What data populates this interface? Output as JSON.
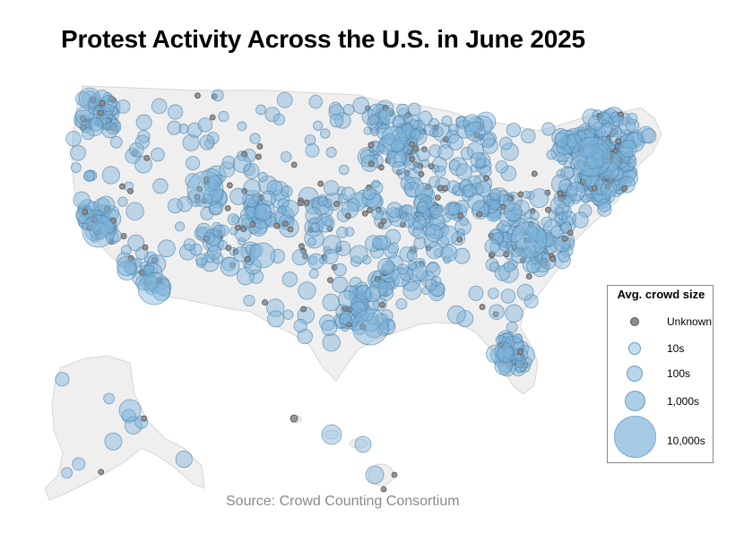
{
  "title": "Protest Activity Across the U.S. in June 2025",
  "source": "Source: Crowd Counting Consortium",
  "legend": {
    "title": "Avg. crowd size",
    "items": [
      {
        "label": "Unknown",
        "kind": "unknown"
      },
      {
        "label": "10s",
        "kind": "tens"
      },
      {
        "label": "100s",
        "kind": "hundreds"
      },
      {
        "label": "1,000s",
        "kind": "thousands"
      },
      {
        "label": "10,000s",
        "kind": "tenthousands"
      }
    ]
  },
  "colors": {
    "bubble_fill": "#7fb3d9",
    "bubble_stroke": "#4a7fa8",
    "unknown_fill": "#8c8c8c",
    "unknown_stroke": "#555555",
    "land": "#efefef",
    "land_stroke": "#d6d6d6"
  },
  "regions": [
    "Contiguous U.S.",
    "Alaska",
    "Hawaii"
  ]
}
